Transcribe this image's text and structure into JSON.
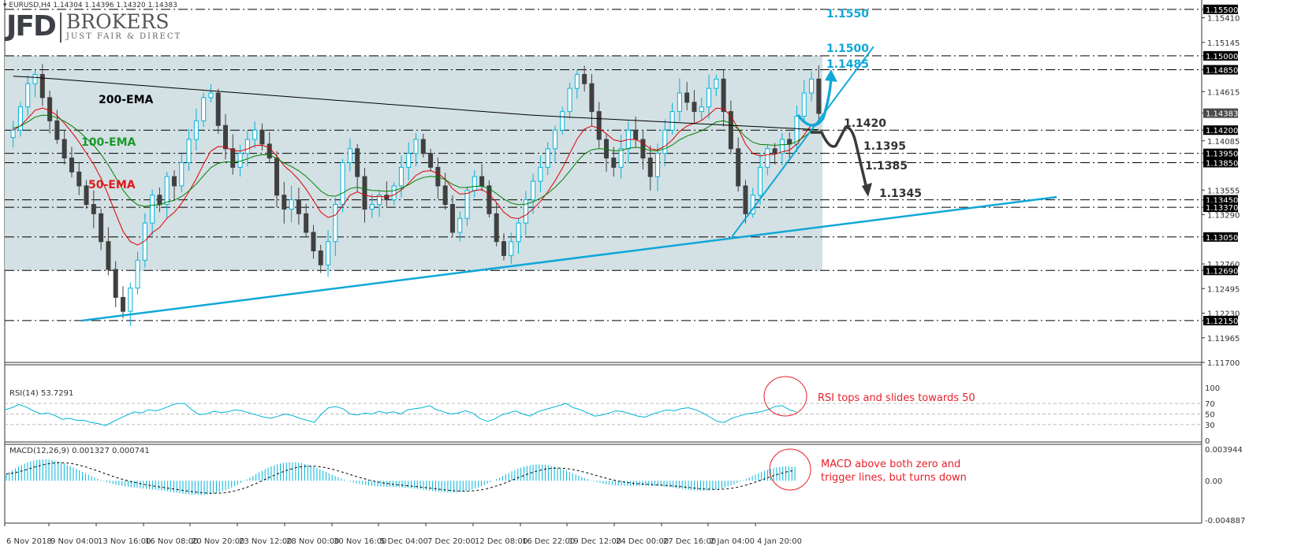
{
  "header": {
    "symbol_line": "▾ EURUSD,H4  1.14304 1.14396 1.14320 1.14383"
  },
  "logo": {
    "mark": "JFD",
    "name": "BROKERS",
    "tagline": "JUST FAIR & DIRECT"
  },
  "colors": {
    "bull": "#00b4d8",
    "bear": "#404040",
    "ema50": "#e00000",
    "ema100": "#008000",
    "ema200": "#000000",
    "trend": "#10a8d8",
    "range_fill": "#d3e0e4",
    "note": "#e8202a",
    "price_tag_bg": "#000000",
    "current_tag_bg": "#4a4a4a"
  },
  "chart_data": [
    {
      "type": "candlestick",
      "title": "EURUSD,H4",
      "ohlc_last": {
        "open": 1.14304,
        "high": 1.14396,
        "low": 1.1432,
        "close": 1.14383
      },
      "ylim": [
        1.117,
        1.1555
      ],
      "yticks": [
        "1.15500",
        "1.15410",
        "1.15145",
        "1.15000",
        "1.14850",
        "1.14615",
        "1.14383",
        "1.14200",
        "1.14085",
        "1.13950",
        "1.13850",
        "1.13555",
        "1.13450",
        "1.13370",
        "1.13290",
        "1.13050",
        "1.12760",
        "1.12690",
        "1.12495",
        "1.12230",
        "1.12150",
        "1.11965",
        "1.11700"
      ],
      "highlighted_levels": [
        1.155,
        1.15,
        1.1485,
        1.142,
        1.1395,
        1.1385,
        1.1345,
        1.1337,
        1.1305,
        1.1269,
        1.1215
      ],
      "current_price": 1.14383,
      "x_tick_labels": [
        "6 Nov 2018",
        "9 Nov 04:00",
        "13 Nov 16:00",
        "16 Nov 08:00",
        "20 Nov 20:00",
        "23 Nov 12:00",
        "28 Nov 00:00",
        "30 Nov 16:00",
        "5 Dec 04:00",
        "7 Dec 20:00",
        "12 Dec 08:00",
        "16 Dec 22:00",
        "19 Dec 12:00",
        "24 Dec 00:00",
        "27 Dec 16:00",
        "2 Jan 04:00",
        "4 Jan 20:00"
      ],
      "series": [
        {
          "name": "200-EMA",
          "color": "#000000"
        },
        {
          "name": "100-EMA",
          "color": "#008000"
        },
        {
          "name": "50-EMA",
          "color": "#e00000"
        }
      ],
      "closes": [
        1.142,
        1.1445,
        1.147,
        1.148,
        1.1455,
        1.143,
        1.141,
        1.139,
        1.1375,
        1.136,
        1.134,
        1.133,
        1.13,
        1.127,
        1.124,
        1.1225,
        1.125,
        1.128,
        1.132,
        1.135,
        1.134,
        1.137,
        1.136,
        1.1385,
        1.141,
        1.143,
        1.1455,
        1.146,
        1.1425,
        1.14,
        1.138,
        1.1395,
        1.141,
        1.142,
        1.1405,
        1.139,
        1.135,
        1.1335,
        1.1345,
        1.133,
        1.131,
        1.129,
        1.1275,
        1.13,
        1.134,
        1.1385,
        1.14,
        1.137,
        1.1335,
        1.134,
        1.135,
        1.1345,
        1.136,
        1.138,
        1.1395,
        1.141,
        1.1395,
        1.138,
        1.136,
        1.134,
        1.131,
        1.1325,
        1.1355,
        1.137,
        1.136,
        1.133,
        1.13,
        1.1285,
        1.13,
        1.132,
        1.1345,
        1.1365,
        1.138,
        1.14,
        1.142,
        1.144,
        1.1465,
        1.148,
        1.147,
        1.144,
        1.141,
        1.139,
        1.138,
        1.14,
        1.142,
        1.141,
        1.139,
        1.137,
        1.1395,
        1.142,
        1.144,
        1.146,
        1.145,
        1.144,
        1.1445,
        1.1465,
        1.1475,
        1.144,
        1.14,
        1.136,
        1.133,
        1.135,
        1.138,
        1.14,
        1.1395,
        1.141,
        1.1405,
        1.1435,
        1.146,
        1.1475,
        1.1438
      ],
      "annotations": [
        {
          "text": "1.1550",
          "color": "#10a8d8"
        },
        {
          "text": "1.1500",
          "color": "#10a8d8"
        },
        {
          "text": "1.1485",
          "color": "#10a8d8"
        },
        {
          "text": "1.1420",
          "color": "#333333"
        },
        {
          "text": "1.1395",
          "color": "#333333"
        },
        {
          "text": "1.1385",
          "color": "#333333"
        },
        {
          "text": "1.1345",
          "color": "#333333"
        }
      ]
    },
    {
      "type": "line",
      "title": "RSI(14) 53.7291",
      "ylim": [
        0,
        100
      ],
      "yticks": [
        100,
        70,
        50,
        30,
        0
      ],
      "last_value": 53.7291,
      "values": [
        58,
        62,
        68,
        63,
        56,
        50,
        52,
        47,
        40,
        42,
        38,
        38,
        34,
        32,
        28,
        35,
        42,
        48,
        54,
        52,
        58,
        56,
        60,
        66,
        70,
        70,
        58,
        49,
        50,
        55,
        53,
        54,
        58,
        56,
        52,
        48,
        44,
        42,
        46,
        50,
        47,
        42,
        38,
        34,
        50,
        62,
        64,
        60,
        50,
        48,
        52,
        50,
        55,
        52,
        54,
        50,
        58,
        60,
        62,
        66,
        58,
        54,
        50,
        52,
        56,
        52,
        42,
        36,
        40,
        48,
        52,
        56,
        50,
        46,
        54,
        58,
        62,
        66,
        70,
        62,
        58,
        52,
        46,
        48,
        52,
        56,
        54,
        50,
        46,
        44,
        50,
        54,
        58,
        56,
        60,
        62,
        58,
        52,
        44,
        36,
        34,
        42,
        46,
        50,
        52,
        54,
        58,
        64,
        66,
        58,
        54
      ],
      "note": "RSI tops and slides towards 50"
    },
    {
      "type": "bar+line",
      "title": "MACD(12,26,9) 0.001327 0.000741",
      "ylim": [
        -0.004887,
        0.003944
      ],
      "yticks": [
        "0.003944",
        "0.00",
        "-0.004887"
      ],
      "macd_last": 0.001327,
      "signal_last": 0.000741,
      "note_lines": [
        "MACD above both zero and",
        "trigger lines, but turns down"
      ]
    }
  ],
  "notes": {
    "rsi": "RSI tops and slides towards 50",
    "macd_line1": "MACD above both zero and",
    "macd_line2": "trigger lines, but turns down"
  },
  "labels": {
    "ema200": "200-EMA",
    "ema100": "100-EMA",
    "ema50": "50-EMA",
    "rsi_title": "RSI(14) 53.7291",
    "macd_title": "MACD(12,26,9) 0.001327 0.000741"
  }
}
